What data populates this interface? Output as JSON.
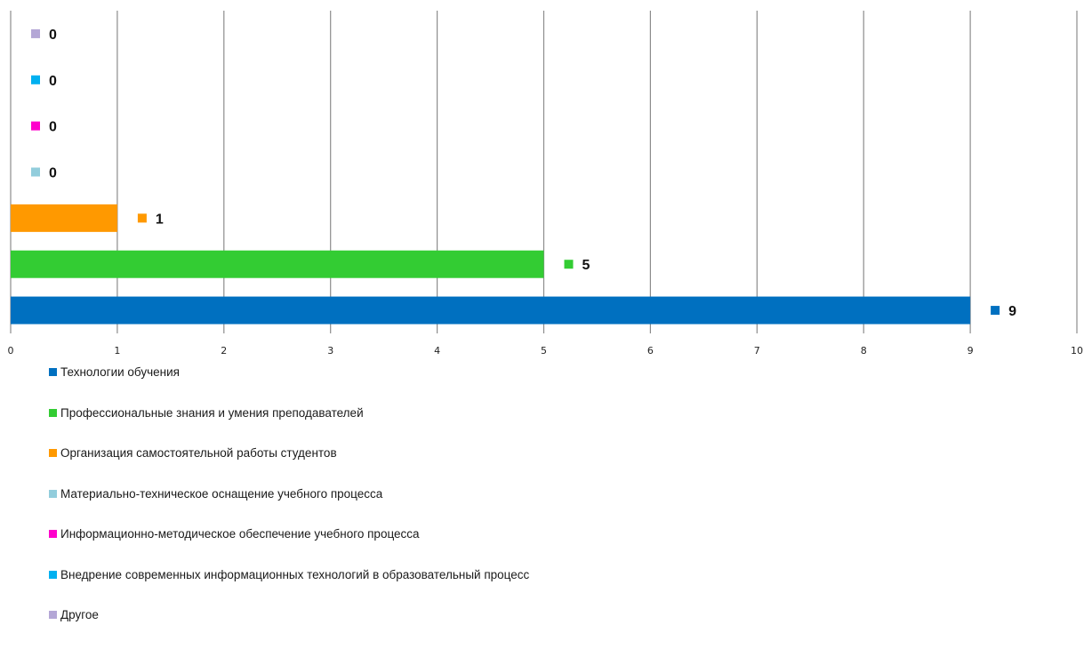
{
  "chart_data": {
    "type": "bar",
    "orientation": "horizontal",
    "title": "",
    "xlabel": "",
    "ylabel": "",
    "xlim": [
      0,
      10
    ],
    "x_ticks": [
      "0",
      "1",
      "2",
      "3",
      "4",
      "5",
      "6",
      "7",
      "8",
      "9",
      "10"
    ],
    "grid": "vertical",
    "legend_position": "bottom",
    "series": [
      {
        "name": "Технологии обучения",
        "value": 9,
        "label": "9",
        "color": "#0070C0"
      },
      {
        "name": "Профессиональные знания и умения преподавателей",
        "value": 5,
        "label": "5",
        "color": "#33CC33"
      },
      {
        "name": "Организация самостоятельной работы студентов",
        "value": 1,
        "label": "1",
        "color": "#FF9900"
      },
      {
        "name": "Материально-техническое оснащение учебного процесса",
        "value": 0,
        "label": "0",
        "color": "#92CDDC"
      },
      {
        "name": "Информационно-методическое обеспечение учебного процесса",
        "value": 0,
        "label": "0",
        "color": "#FF00CC"
      },
      {
        "name": "Внедрение современных информационных технологий в образовательный процесс",
        "value": 0,
        "label": "0",
        "color": "#00B0F0"
      },
      {
        "name": "Другое",
        "value": 0,
        "label": "0",
        "color": "#B4A7D6"
      }
    ]
  }
}
